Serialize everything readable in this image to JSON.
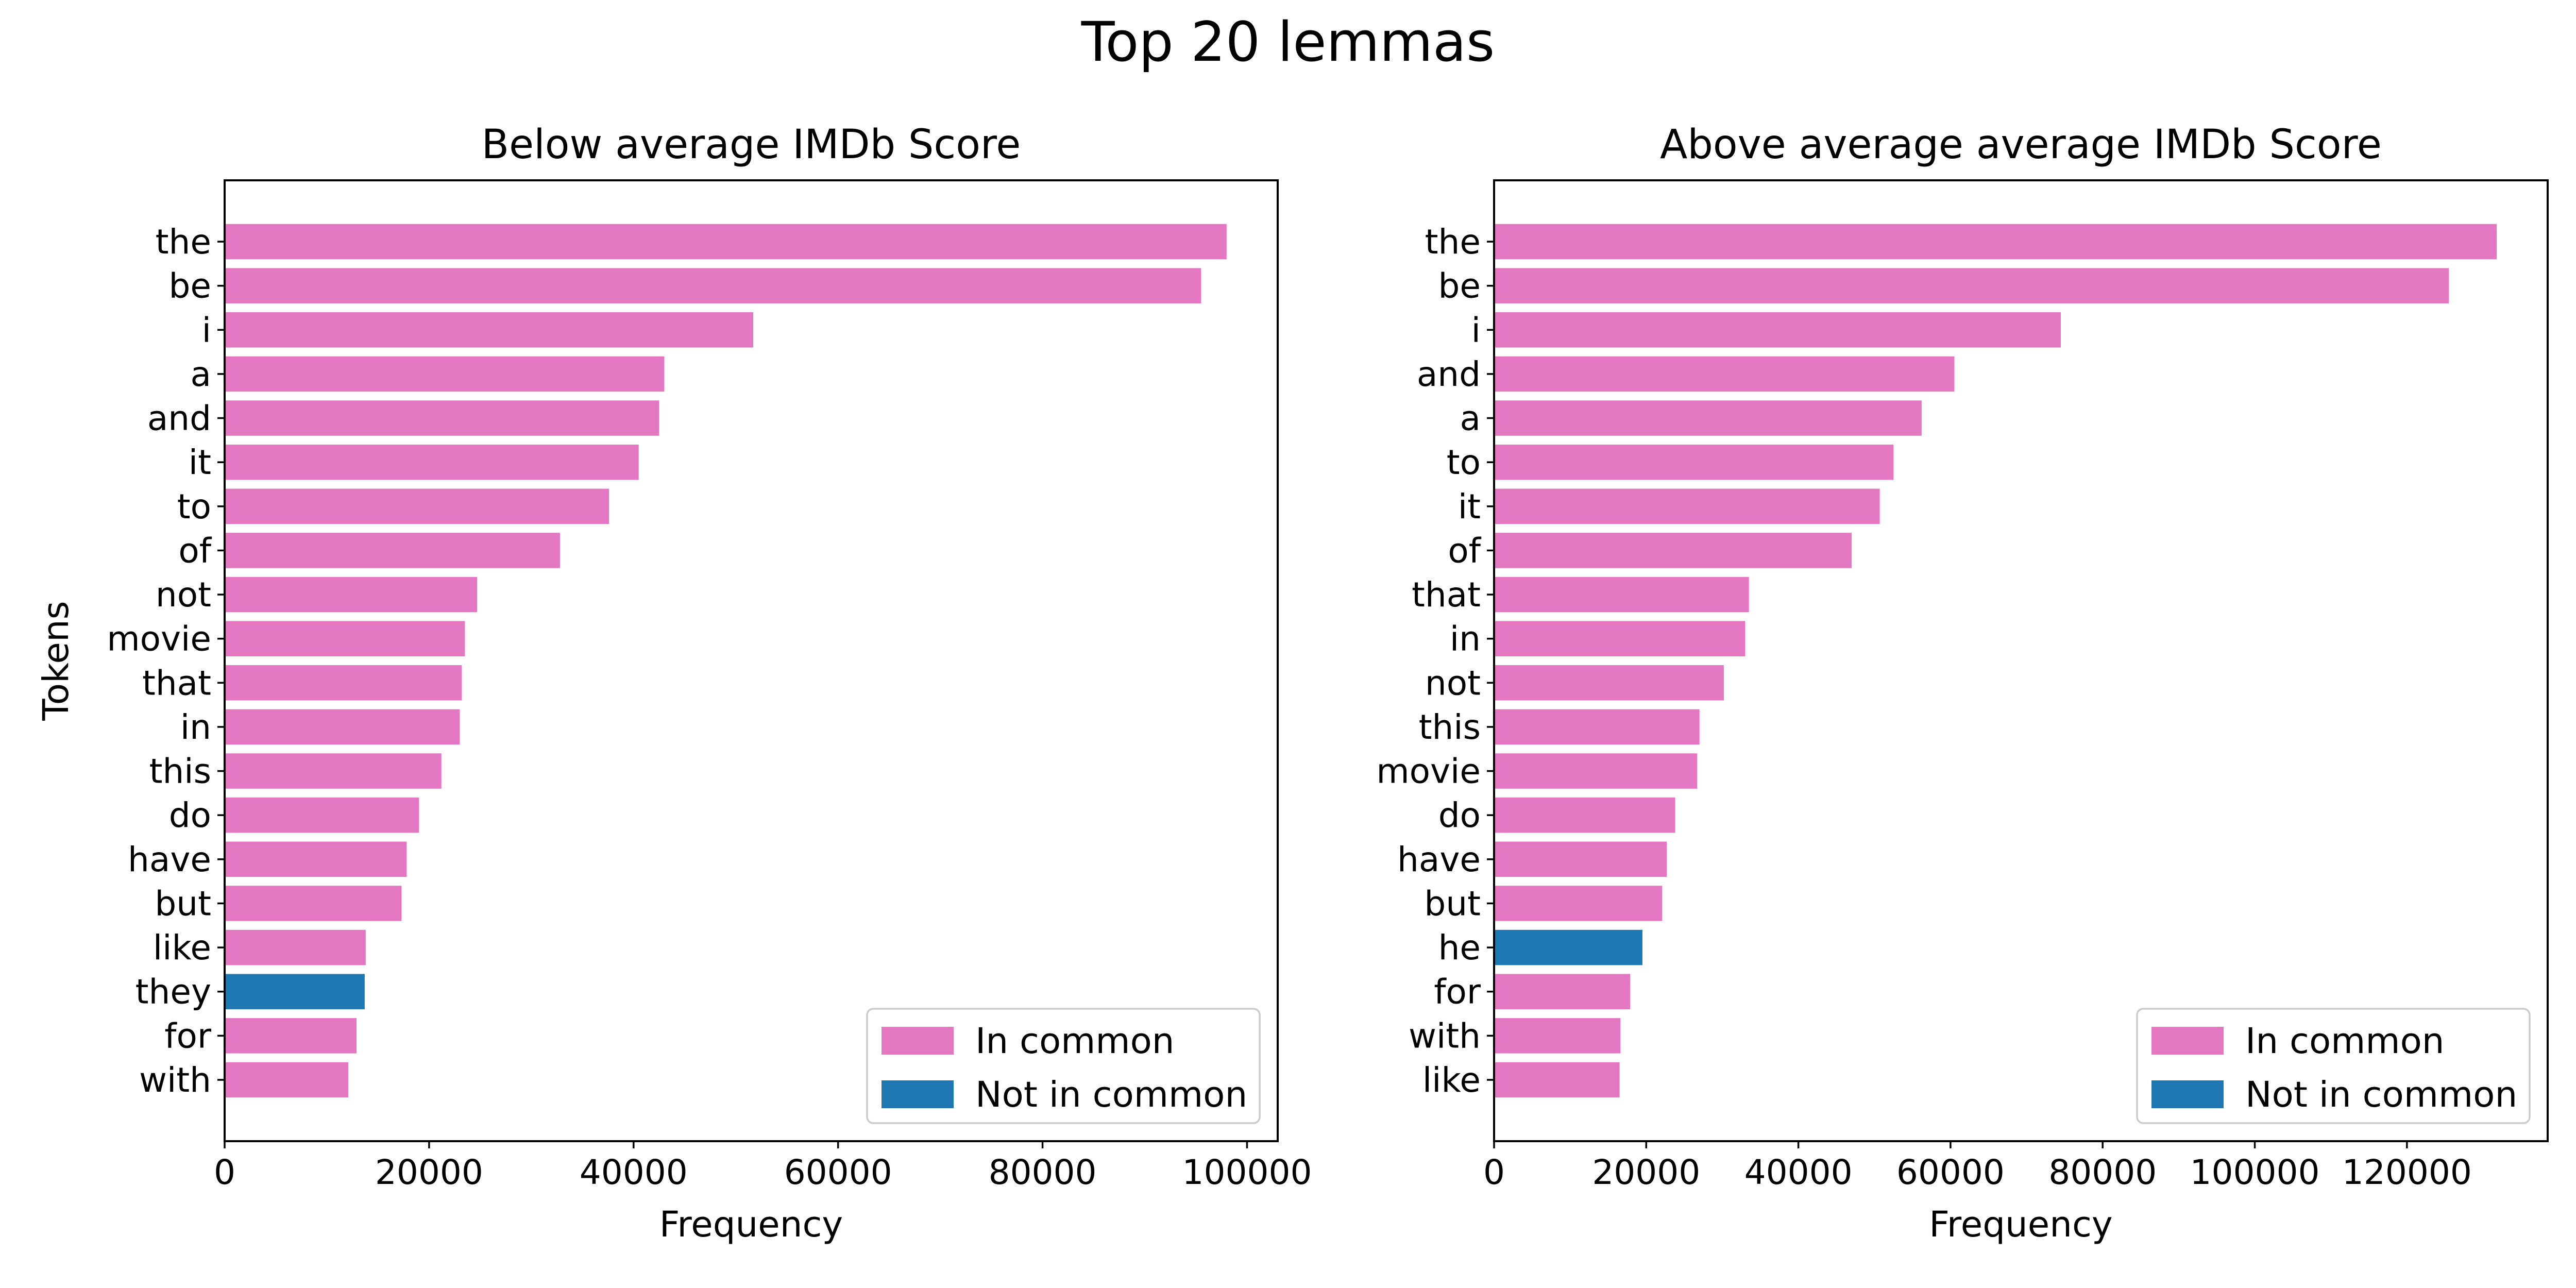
{
  "chart_data": {
    "title": "Top 20 lemmas",
    "colors": {
      "in_common": "#e377c2",
      "not_in_common": "#1f77b4"
    },
    "legend": {
      "position": "lower right",
      "entries": [
        "In common",
        "Not in common"
      ]
    },
    "panels": [
      {
        "type": "bar",
        "orientation": "horizontal",
        "title": "Below average IMDb Score",
        "xlabel": "Frequency",
        "ylabel": "Tokens",
        "xlim": [
          0,
          103000
        ],
        "xticks": [
          0,
          20000,
          40000,
          60000,
          80000,
          100000
        ],
        "categories": [
          "the",
          "be",
          "i",
          "a",
          "and",
          "it",
          "to",
          "of",
          "not",
          "movie",
          "that",
          "in",
          "this",
          "do",
          "have",
          "but",
          "like",
          "they",
          "for",
          "with"
        ],
        "values": [
          98000,
          95500,
          51700,
          43000,
          42500,
          40500,
          37600,
          32800,
          24700,
          23500,
          23200,
          23000,
          21200,
          19000,
          17800,
          17300,
          13800,
          13700,
          12900,
          12100
        ],
        "in_common": [
          true,
          true,
          true,
          true,
          true,
          true,
          true,
          true,
          true,
          true,
          true,
          true,
          true,
          true,
          true,
          true,
          true,
          false,
          true,
          true
        ]
      },
      {
        "type": "bar",
        "orientation": "horizontal",
        "title": "Above average average IMDb Score",
        "xlabel": "Frequency",
        "ylabel": "",
        "xlim": [
          0,
          138500
        ],
        "xticks": [
          0,
          20000,
          40000,
          60000,
          80000,
          100000,
          120000
        ],
        "categories": [
          "the",
          "be",
          "i",
          "and",
          "a",
          "to",
          "it",
          "of",
          "that",
          "in",
          "not",
          "this",
          "movie",
          "do",
          "have",
          "but",
          "he",
          "for",
          "with",
          "like"
        ],
        "values": [
          131800,
          125500,
          74500,
          60500,
          56200,
          52500,
          50700,
          47000,
          33500,
          33000,
          30200,
          27000,
          26700,
          23800,
          22700,
          22100,
          19500,
          17900,
          16600,
          16500
        ],
        "in_common": [
          true,
          true,
          true,
          true,
          true,
          true,
          true,
          true,
          true,
          true,
          true,
          true,
          true,
          true,
          true,
          true,
          false,
          true,
          true,
          true
        ]
      }
    ]
  }
}
